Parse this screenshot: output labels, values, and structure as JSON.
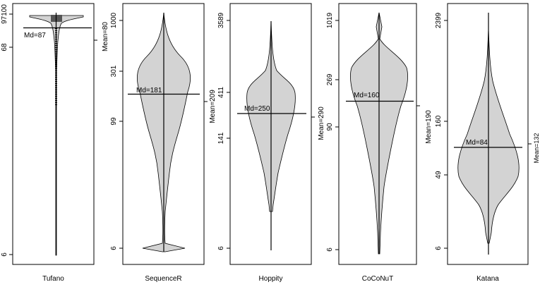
{
  "chart_data": [
    {
      "type": "violin",
      "name": "Tufano",
      "y_scale": "log",
      "ytick_labels": [
        "6",
        "68",
        "97100"
      ],
      "median_label": "Md=87",
      "mean_label": "",
      "median": 87,
      "mean": 80
    },
    {
      "type": "violin",
      "name": "SequenceR",
      "y_scale": "log",
      "ytick_labels": [
        "6",
        "99",
        "301",
        "1000"
      ],
      "median_label": "Md=181",
      "mean_label": "Mean=80",
      "median": 181,
      "mean": 209
    },
    {
      "type": "violin",
      "name": "Hoppity",
      "y_scale": "log",
      "ytick_labels": [
        "6",
        "141",
        "411",
        "3589"
      ],
      "median_label": "Md=250",
      "mean_label": "Mean=209",
      "median": 250,
      "mean": 290
    },
    {
      "type": "violin",
      "name": "CoCoNuT",
      "y_scale": "log",
      "ytick_labels": [
        "6",
        "90",
        "269",
        "1019"
      ],
      "median_label": "Md=160",
      "mean_label": "Mean=290",
      "median": 160,
      "mean": 190
    },
    {
      "type": "violin",
      "name": "Katana",
      "y_scale": "log",
      "ytick_labels": [
        "6",
        "49",
        "160",
        "2399"
      ],
      "median_label": "Md=84",
      "mean_label": "Mean=190",
      "median": 84,
      "mean": 132
    }
  ],
  "extra_labels": {
    "last_mean_label": "Mean=132"
  },
  "colors": {
    "violin_fill": "#d3d3d3",
    "outline": "#000000",
    "background": "#ffffff",
    "tufano_dense": "#555555"
  }
}
